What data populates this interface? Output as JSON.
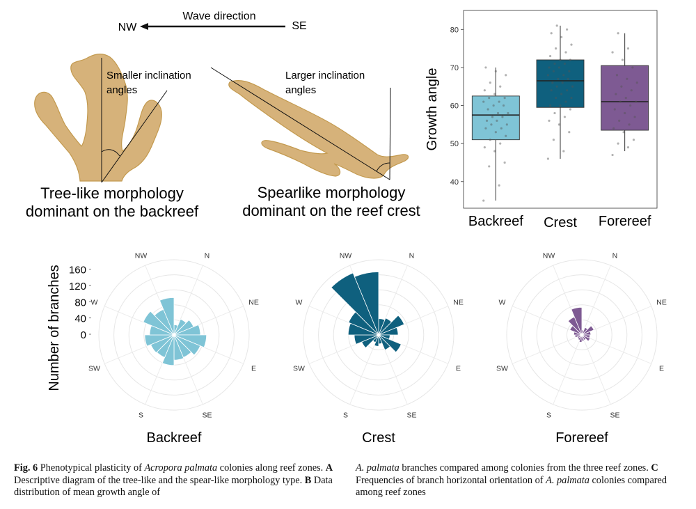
{
  "panel_a": {
    "wave_label": "Wave direction",
    "nw_label": "NW",
    "se_label": "SE",
    "tree_note_1": "Smaller inclination",
    "tree_note_2": "angles",
    "spear_note_1": "Larger inclination",
    "spear_note_2": "angles",
    "tree_title_1": "Tree-like morphology",
    "tree_title_2": "dominant on the backreef",
    "spear_title_1": "Spearlike morphology",
    "spear_title_2": "dominant on the reef crest",
    "coral_color": "#d6b27a",
    "coral_edge": "#c39a4f"
  },
  "chart_data": [
    {
      "type": "box",
      "ylabel": "Growth angle",
      "categories": [
        "Backreef",
        "Crest",
        "Forereef"
      ],
      "ylim": [
        33,
        85
      ],
      "yticks": [
        40,
        50,
        60,
        70,
        80
      ],
      "grid": false,
      "colors": [
        "#7fc4d6",
        "#0f607e",
        "#7e5a93"
      ],
      "boxes": [
        {
          "name": "Backreef",
          "whisker_low": 35,
          "q1": 51,
          "median": 57.5,
          "q3": 62.5,
          "whisker_high": 70
        },
        {
          "name": "Crest",
          "whisker_low": 46,
          "q1": 59.5,
          "median": 66.5,
          "q3": 72,
          "whisker_high": 81
        },
        {
          "name": "Forereef",
          "whisker_low": 48,
          "q1": 53.5,
          "median": 61,
          "q3": 70.5,
          "whisker_high": 79
        }
      ],
      "points": [
        [
          35,
          39,
          44,
          45,
          48,
          49,
          50,
          51,
          52,
          53,
          54,
          54,
          55,
          55,
          56,
          56,
          57,
          57,
          58,
          58,
          59,
          60,
          60,
          61,
          61,
          62,
          62,
          63,
          64,
          65,
          66,
          68,
          69,
          70
        ],
        [
          46,
          48,
          51,
          53,
          55,
          56,
          57,
          58,
          59,
          60,
          60,
          61,
          62,
          62,
          63,
          64,
          64,
          65,
          65,
          66,
          66,
          67,
          67,
          68,
          68,
          69,
          69,
          70,
          70,
          71,
          71,
          72,
          72,
          73,
          74,
          75,
          76,
          78,
          79,
          80,
          81
        ],
        [
          47,
          49,
          50,
          51,
          53,
          54,
          55,
          56,
          57,
          58,
          59,
          60,
          61,
          61,
          62,
          63,
          64,
          65,
          66,
          67,
          68,
          70,
          72,
          74,
          75,
          79
        ]
      ]
    },
    {
      "type": "rose",
      "title": "Backreef",
      "ylabel": "Number of branches",
      "rticks": [
        0,
        40,
        80,
        120,
        160
      ],
      "directions": [
        "N",
        "NE",
        "E",
        "SE",
        "S",
        "SW",
        "W",
        "NW"
      ],
      "color": "#7fc4d6",
      "sector_start_bearings": [
        0,
        22.5,
        45,
        67.5,
        90,
        112.5,
        135,
        157.5,
        180,
        202.5,
        225,
        247.5,
        270,
        292.5,
        315,
        337.5
      ],
      "values": [
        25,
        42,
        52,
        65,
        80,
        70,
        60,
        62,
        75,
        60,
        62,
        72,
        60,
        82,
        68,
        92
      ]
    },
    {
      "type": "rose",
      "title": "Crest",
      "ylabel": "",
      "rticks": [
        0,
        40,
        80,
        120,
        160
      ],
      "directions": [
        "N",
        "NE",
        "E",
        "SE",
        "S",
        "SW",
        "W",
        "NW"
      ],
      "color": "#0f607e",
      "sector_start_bearings": [
        0,
        22.5,
        45,
        67.5,
        90,
        112.5,
        135,
        157.5,
        180,
        202.5,
        225,
        247.5,
        270,
        292.5,
        315,
        337.5
      ],
      "values": [
        40,
        45,
        68,
        48,
        28,
        60,
        40,
        22,
        28,
        20,
        45,
        60,
        75,
        80,
        165,
        155
      ]
    },
    {
      "type": "rose",
      "title": "Forereef",
      "ylabel": "",
      "rticks": [
        0,
        40,
        80,
        120,
        160
      ],
      "directions": [
        "N",
        "NE",
        "E",
        "SE",
        "S",
        "SW",
        "W",
        "NW"
      ],
      "color": "#7e5a93",
      "sector_start_bearings": [
        0,
        22.5,
        45,
        67.5,
        90,
        112.5,
        135,
        157.5,
        180,
        202.5,
        225,
        247.5,
        270,
        292.5,
        315,
        337.5
      ],
      "values": [
        12,
        20,
        32,
        22,
        20,
        22,
        14,
        15,
        18,
        14,
        12,
        17,
        20,
        32,
        48,
        68
      ]
    }
  ],
  "caption": {
    "fig": "Fig. 6",
    "t1": " Phenotypical plasticity of ",
    "species1": "Acropora palmata",
    "t2": " colonies along reef zones. ",
    "labelA": "A",
    "t3": " Descriptive diagram of the tree-like and the spear-like morphology type. ",
    "labelB": "B",
    "t4": " Data distribution of mean growth angle of ",
    "species2": "A. palmata",
    "t5": " branches compared among colonies from the three reef zones. ",
    "labelC": "C",
    "t6": " Frequencies of branch horizontal orientation of ",
    "species3": "A. palmata",
    "t7": " colonies compared among reef zones"
  }
}
